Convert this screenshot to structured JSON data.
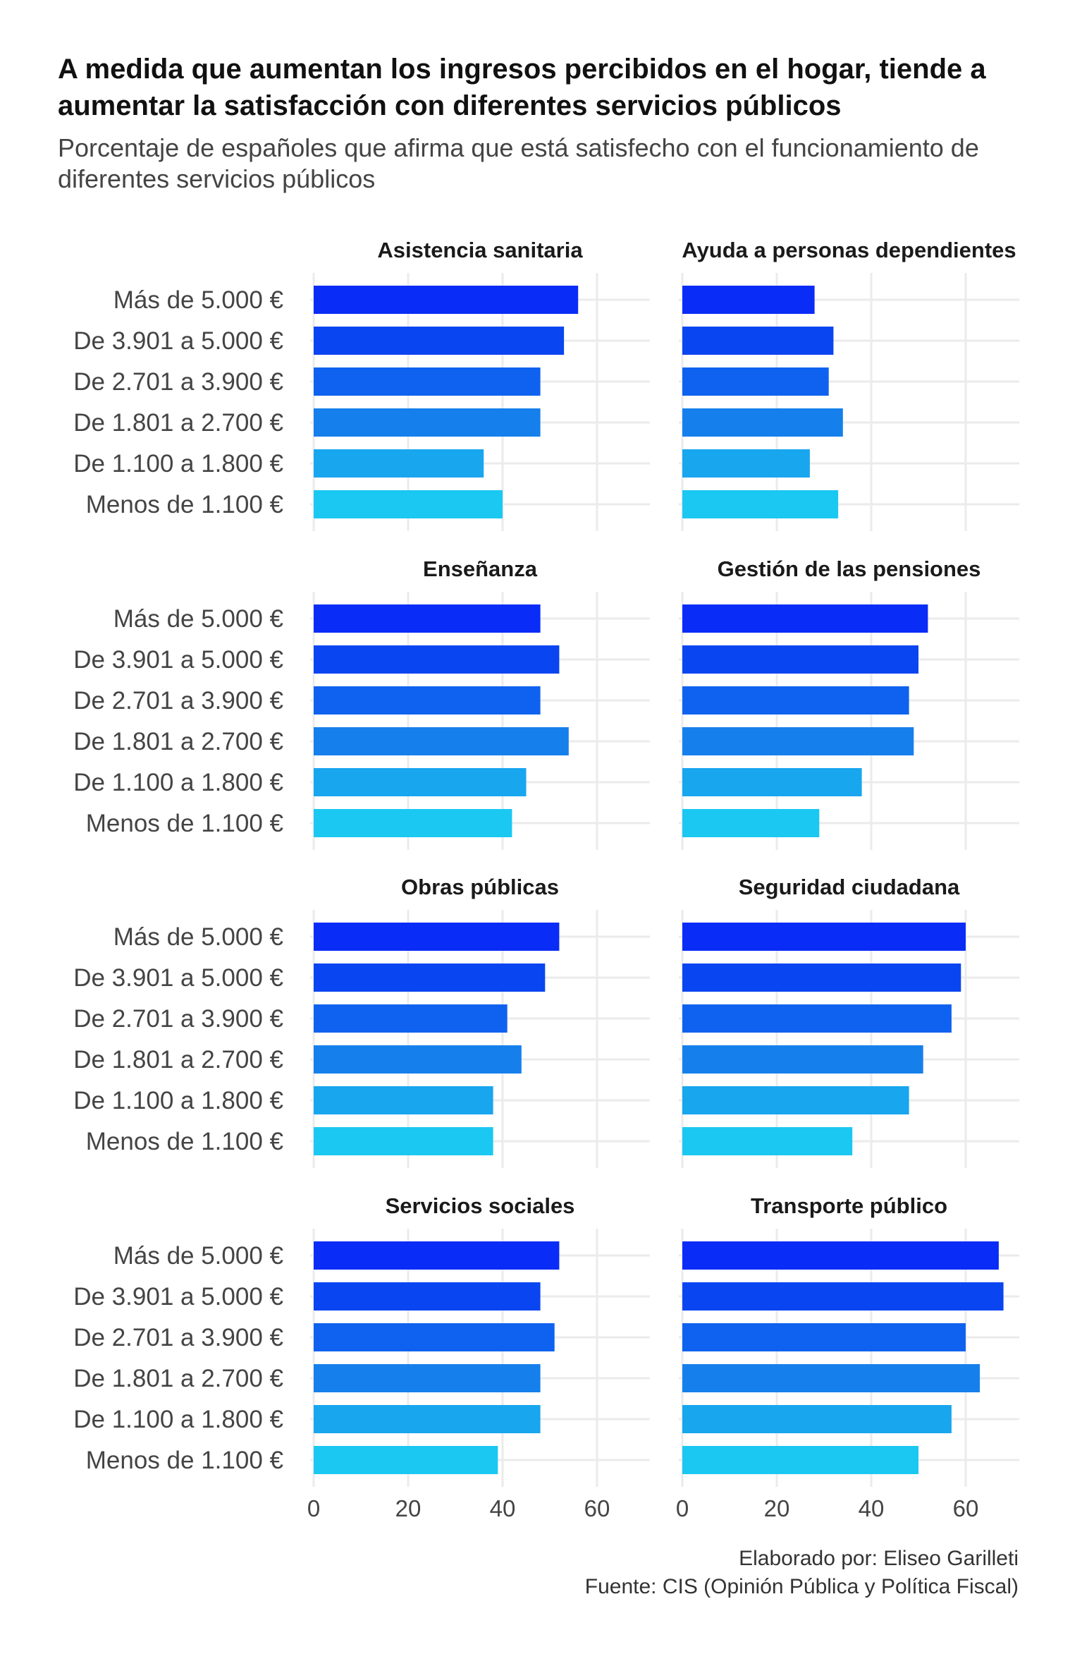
{
  "title": "A medida que aumentan los ingresos percibidos en el hogar, tiende a aumentar la satisfacción con diferentes servicios públicos",
  "subtitle": "Porcentaje de españoles que afirma que está satisfecho con el funcionamiento de diferentes servicios públicos",
  "caption": {
    "author": "Elaborado por: Eliseo Garilleti",
    "source": "Fuente: CIS (Opinión Pública y Política Fiscal)"
  },
  "chart_data": {
    "type": "bar",
    "orientation": "horizontal",
    "categories": [
      "Más de 5.000 €",
      "De 3.901 a 5.000 €",
      "De 2.701 a 3.900 €",
      "De 1.801 a 2.700 €",
      "De 1.100 a 1.800 €",
      "Menos de 1.100 €"
    ],
    "category_colors": [
      "#0a2cf7",
      "#0a45f2",
      "#0f62ef",
      "#1580ec",
      "#18a6ef",
      "#1ac8f2"
    ],
    "xlim": [
      0,
      70
    ],
    "xticks": [
      0,
      20,
      40,
      60
    ],
    "grid": true,
    "panels": [
      {
        "name": "Asistencia sanitaria",
        "values": [
          56,
          53,
          48,
          48,
          36,
          40
        ]
      },
      {
        "name": "Ayuda a personas dependientes",
        "values": [
          28,
          32,
          31,
          34,
          27,
          33
        ]
      },
      {
        "name": "Enseñanza",
        "values": [
          48,
          52,
          48,
          54,
          45,
          42
        ]
      },
      {
        "name": "Gestión de las pensiones",
        "values": [
          52,
          50,
          48,
          49,
          38,
          29
        ]
      },
      {
        "name": "Obras públicas",
        "values": [
          52,
          49,
          41,
          44,
          38,
          38
        ]
      },
      {
        "name": "Seguridad ciudadana",
        "values": [
          60,
          59,
          57,
          51,
          48,
          36
        ]
      },
      {
        "name": "Servicios sociales",
        "values": [
          52,
          48,
          51,
          48,
          48,
          39
        ]
      },
      {
        "name": "Transporte público",
        "values": [
          67,
          68,
          60,
          63,
          57,
          50
        ]
      }
    ]
  }
}
